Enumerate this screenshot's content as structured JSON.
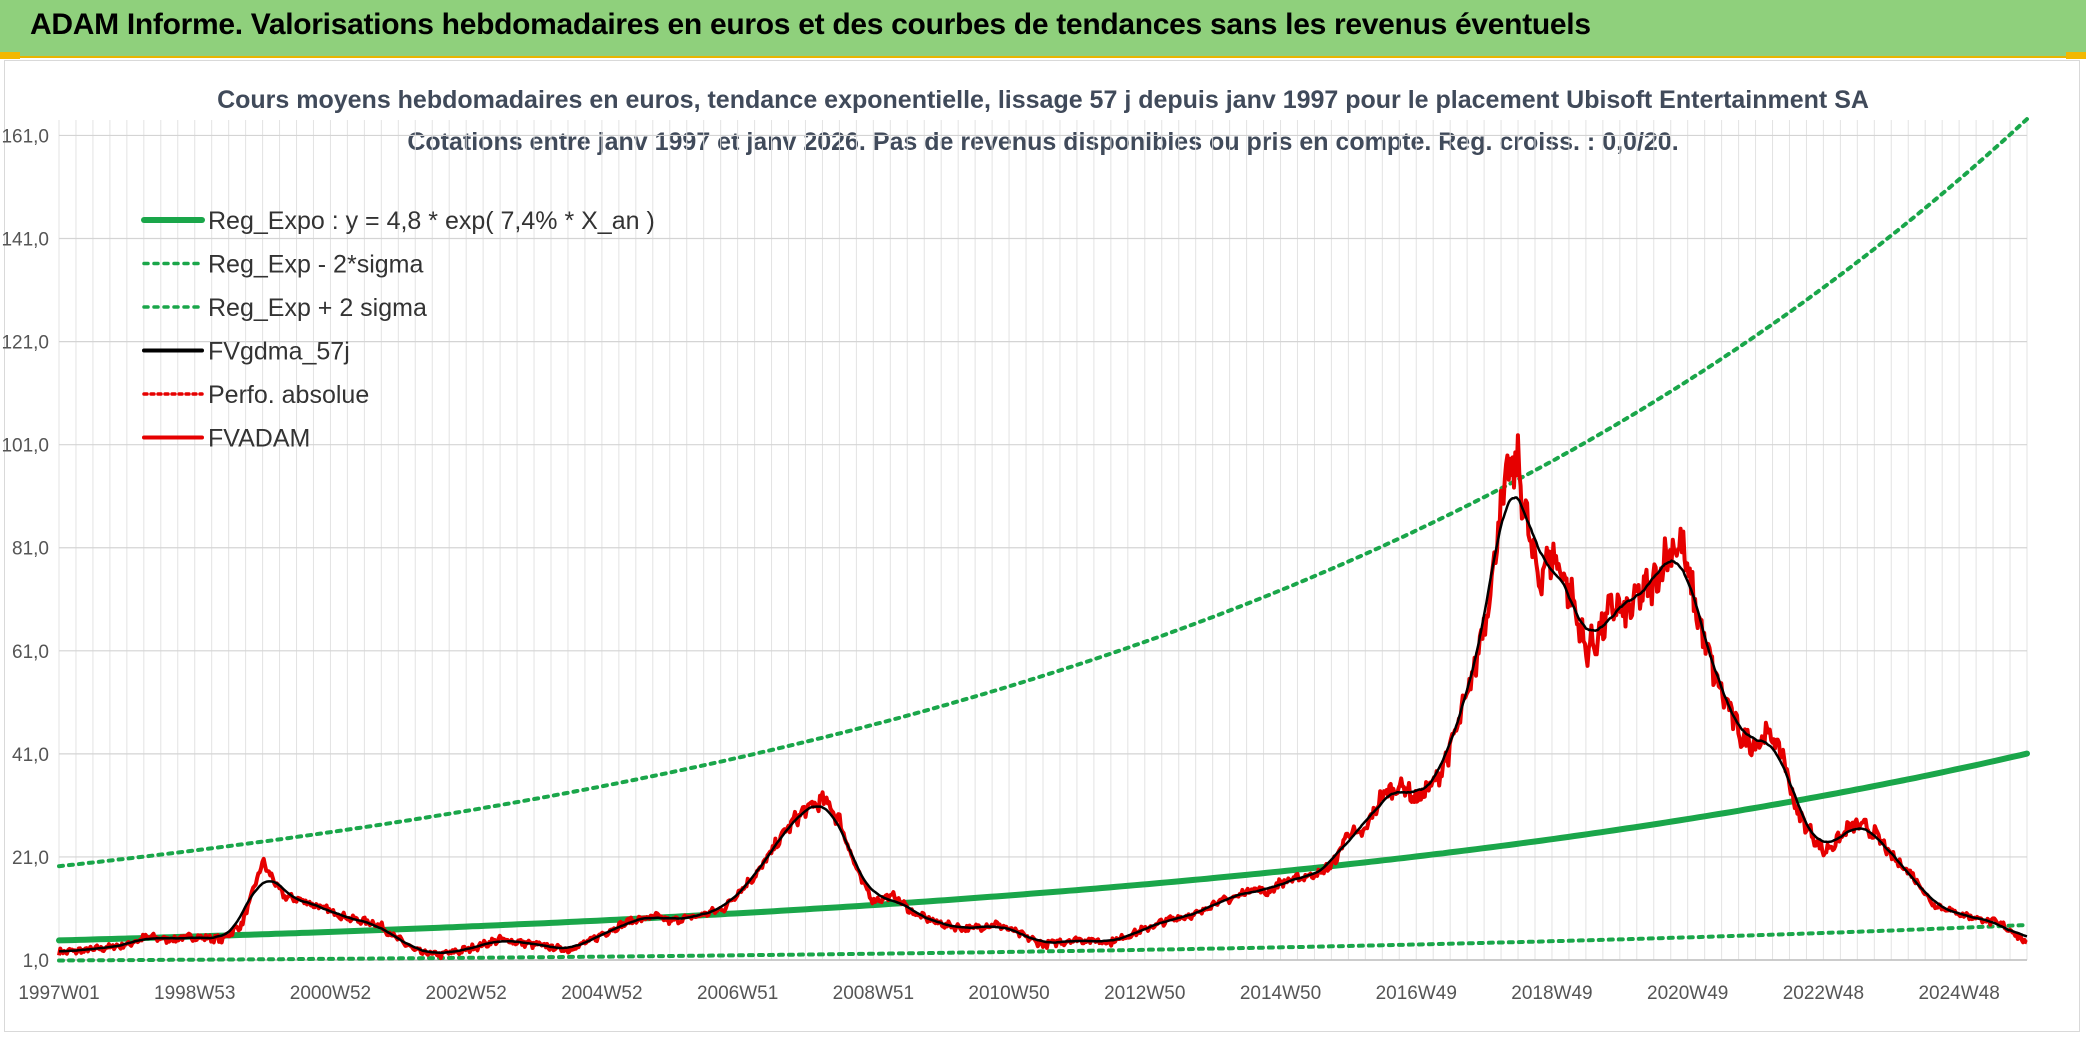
{
  "banner": {
    "title": "ADAM Informe. Valorisations hebdomadaires en euros et des courbes de tendances sans les revenus éventuels",
    "background": "#8fd07c",
    "accent": "#f2b800"
  },
  "chart_data": {
    "type": "line",
    "title": "Cours moyens hebdomadaires en euros, tendance exponentielle, lissage 57 j depuis janv 1997 pour le placement Ubisoft Entertainment SA",
    "subtitle": "Cotations entre janv 1997 et janv 2026. Pas de revenus disponibles ou pris en compte. Reg. croiss. : 0,0/20.",
    "xlabel": "",
    "ylabel": "",
    "xlim": [
      1997.0,
      2026.0
    ],
    "ylim": [
      1.0,
      164.0
    ],
    "grid": true,
    "legend_position": "top-left",
    "y_ticks": [
      1.0,
      21.0,
      41.0,
      61.0,
      81.0,
      101.0,
      121.0,
      141.0,
      161.0
    ],
    "y_tick_labels": [
      "1,0",
      "21,0",
      "41,0",
      "61,0",
      "81,0",
      "101,0",
      "121,0",
      "141,0",
      "161,0"
    ],
    "x_ticks": [
      1997.0,
      1999.0,
      2001.0,
      2003.0,
      2005.0,
      2007.0,
      2009.0,
      2011.0,
      2013.0,
      2015.0,
      2017.0,
      2019.0,
      2021.0,
      2023.0,
      2025.0
    ],
    "x_tick_labels": [
      "1997W01",
      "1998W53",
      "2000W52",
      "2002W52",
      "2004W52",
      "2006W51",
      "2008W51",
      "2010W50",
      "2012W50",
      "2014W50",
      "2016W49",
      "2018W49",
      "2020W49",
      "2022W48",
      "2024W48"
    ],
    "regression": {
      "a": 4.8,
      "rate": 0.074,
      "lower_factor": 0.19,
      "upper_factor": 4.0,
      "start": 1997.0,
      "end": 2026.0
    },
    "series": [
      {
        "name": "Reg_Expo : y = 4,8 * exp( 7,4% *  X_an )",
        "color": "#1aa64a",
        "style": "solid-thick",
        "derived": "regression"
      },
      {
        "name": "Reg_Exp - 2*sigma",
        "color": "#1aa64a",
        "style": "dotted",
        "derived": "lower"
      },
      {
        "name": "Reg_Exp + 2 sigma",
        "color": "#1aa64a",
        "style": "dotted",
        "derived": "upper"
      },
      {
        "name": "FVgdma_57j",
        "color": "#000000",
        "style": "solid",
        "derived": "smooth"
      },
      {
        "name": "Perfo. absolue",
        "color": "#e60000",
        "style": "dotted",
        "derived": "none"
      },
      {
        "name": "FVADAM",
        "color": "#e60000",
        "style": "solid-thick",
        "x": [
          1997.0,
          1997.5,
          1998.0,
          1998.3,
          1998.6,
          1999.0,
          1999.4,
          1999.7,
          1999.85,
          2000.0,
          2000.3,
          2000.6,
          2001.0,
          2001.3,
          2001.7,
          2002.0,
          2002.3,
          2002.6,
          2003.0,
          2003.5,
          2004.0,
          2004.5,
          2004.8,
          2005.0,
          2005.4,
          2005.8,
          2006.0,
          2006.4,
          2006.8,
          2007.0,
          2007.3,
          2007.5,
          2007.7,
          2007.9,
          2008.1,
          2008.3,
          2008.5,
          2008.8,
          2009.0,
          2009.3,
          2009.6,
          2010.0,
          2010.4,
          2010.8,
          2011.0,
          2011.5,
          2012.0,
          2012.5,
          2013.0,
          2013.4,
          2013.8,
          2014.0,
          2014.3,
          2014.6,
          2014.8,
          2015.0,
          2015.3,
          2015.6,
          2015.8,
          2016.0,
          2016.2,
          2016.5,
          2016.8,
          2017.0,
          2017.3,
          2017.5,
          2017.7,
          2017.85,
          2018.0,
          2018.1,
          2018.2,
          2018.35,
          2018.5,
          2018.65,
          2018.8,
          2018.95,
          2019.1,
          2019.3,
          2019.5,
          2019.7,
          2019.9,
          2020.1,
          2020.3,
          2020.5,
          2020.7,
          2020.9,
          2021.0,
          2021.2,
          2021.4,
          2021.6,
          2021.8,
          2022.0,
          2022.2,
          2022.4,
          2022.6,
          2022.8,
          2023.0,
          2023.2,
          2023.4,
          2023.6,
          2023.8,
          2024.0,
          2024.2,
          2024.4,
          2024.6,
          2024.8,
          2025.0,
          2025.3,
          2025.6,
          2025.8,
          2026.0
        ],
        "values": [
          2.5,
          3.0,
          4.0,
          5.5,
          5.0,
          5.5,
          5.0,
          8.0,
          14.0,
          20.0,
          13.5,
          12.5,
          10.5,
          9.0,
          8.0,
          5.0,
          2.5,
          2.0,
          3.0,
          5.0,
          4.0,
          3.0,
          4.5,
          6.0,
          8.5,
          9.5,
          8.5,
          9.5,
          11.0,
          14.0,
          18.0,
          22.0,
          26.0,
          29.0,
          31.0,
          32.0,
          28.0,
          17.0,
          12.5,
          13.5,
          10.0,
          8.0,
          7.0,
          8.0,
          7.0,
          4.0,
          5.0,
          4.5,
          7.0,
          9.0,
          10.0,
          12.0,
          13.0,
          15.0,
          14.0,
          16.0,
          17.0,
          18.0,
          20.0,
          26.0,
          25.0,
          33.0,
          35.0,
          32.0,
          36.0,
          42.0,
          50.0,
          57.0,
          67.0,
          73.0,
          85.0,
          95.0,
          97.0,
          84.0,
          75.0,
          79.0,
          78.0,
          71.0,
          61.0,
          64.0,
          70.0,
          68.0,
          72.0,
          74.0,
          80.0,
          82.0,
          76.0,
          65.0,
          56.0,
          50.0,
          44.0,
          43.0,
          45.0,
          41.0,
          30.0,
          26.0,
          22.0,
          24.0,
          27.0,
          27.0,
          25.0,
          21.0,
          19.0,
          16.0,
          12.0,
          11.0,
          10.0,
          9.0,
          8.0,
          6.5,
          4.0
        ]
      }
    ]
  }
}
